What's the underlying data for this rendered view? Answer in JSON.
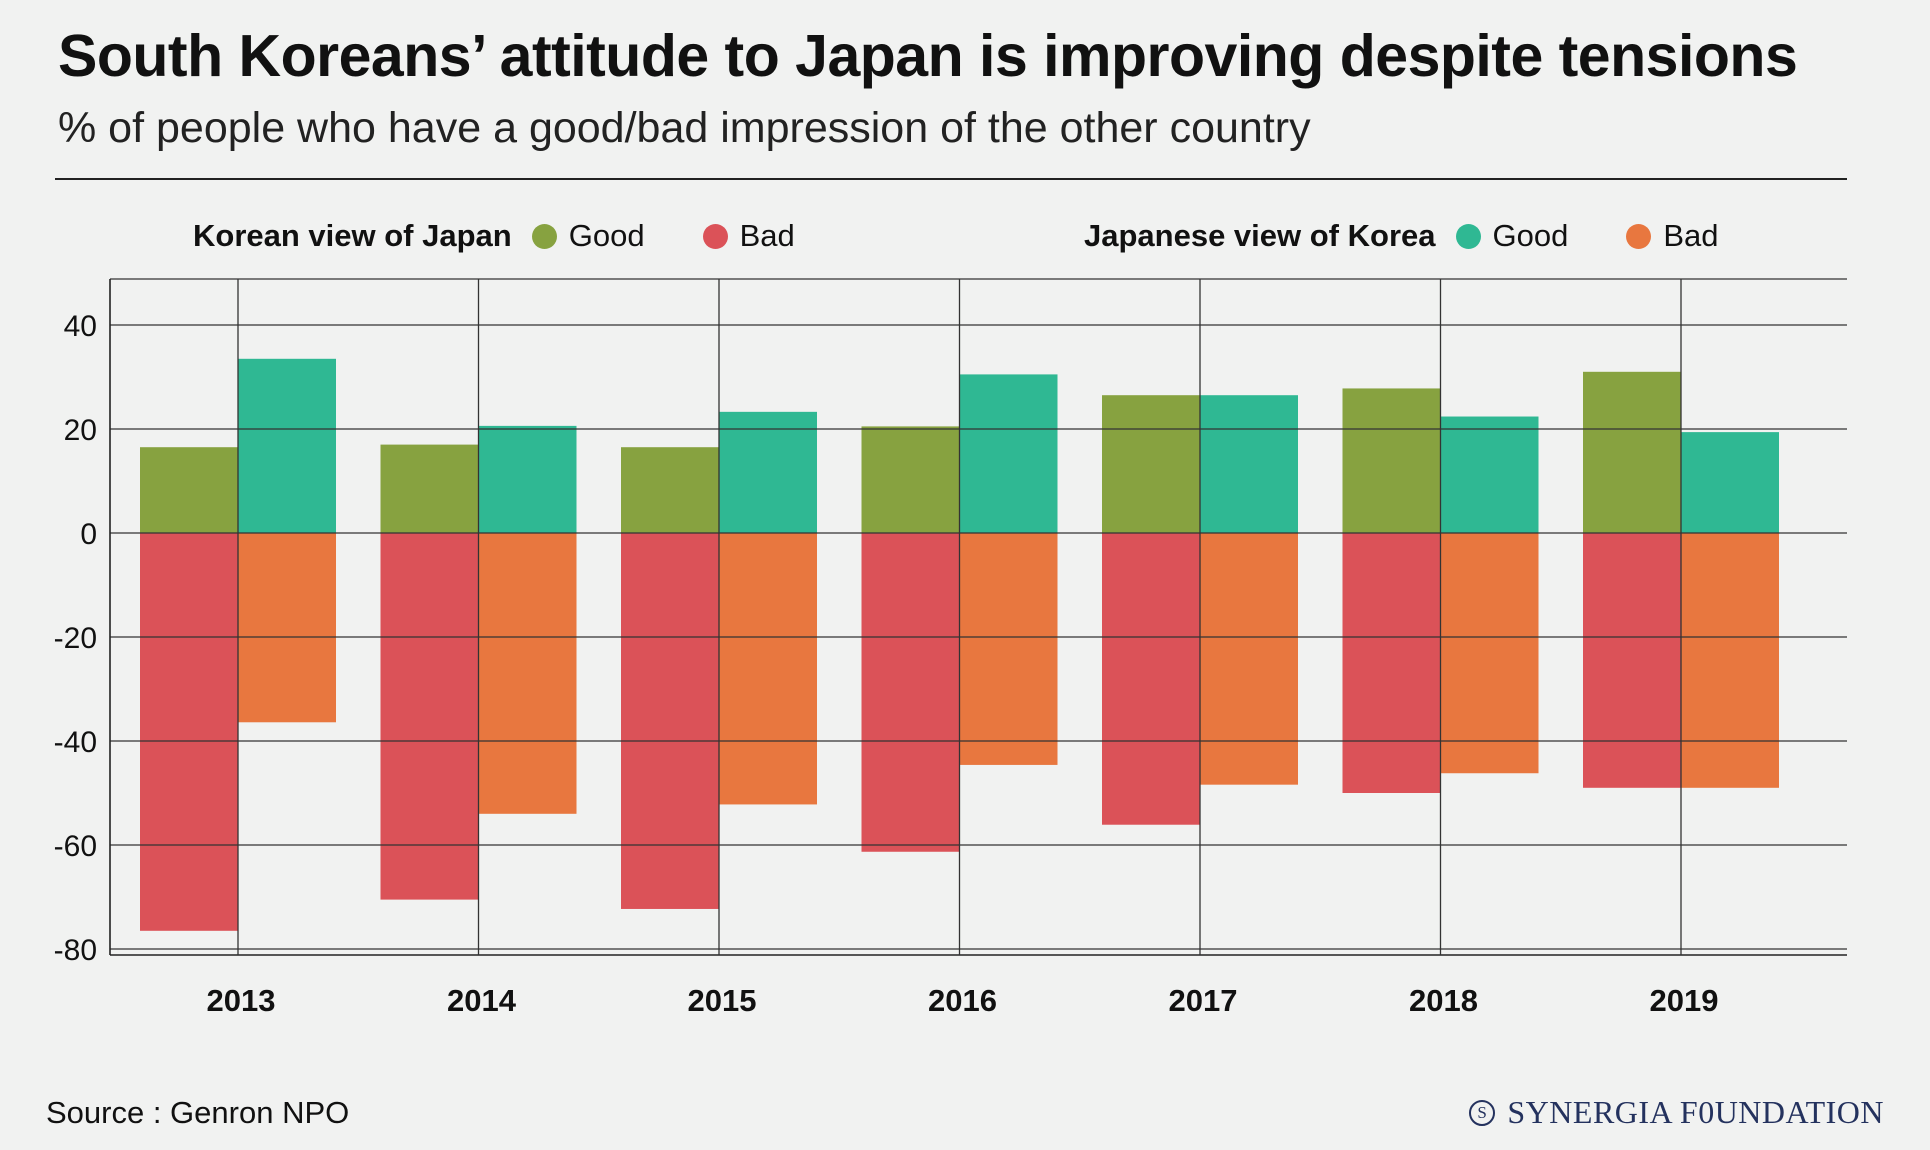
{
  "title": "South Koreans’ attitude to Japan is improving despite tensions",
  "subtitle": "% of people who have a good/bad impression of the other country",
  "legend": {
    "korean_label": "Korean view of Japan",
    "korean_good": "Good",
    "korean_bad": "Bad",
    "japanese_label": "Japanese view of Korea",
    "japanese_good": "Good",
    "japanese_bad": "Bad"
  },
  "source": "Source : Genron NPO",
  "brand": {
    "logo": "S",
    "name": "SYNERGIA F0UNDATION"
  },
  "colors": {
    "korean_good": "#87a240",
    "korean_bad": "#db5258",
    "japanese_good": "#2fb893",
    "japanese_bad": "#e8773f"
  },
  "chart_data": {
    "type": "bar",
    "title": "South Koreans’ attitude to Japan is improving despite tensions",
    "xlabel": "",
    "ylabel": "",
    "categories": [
      "2013",
      "2014",
      "2015",
      "2016",
      "2017",
      "2018",
      "2019"
    ],
    "ylim": [
      -80,
      50
    ],
    "yticks": [
      40,
      20,
      0,
      -20,
      -40,
      -60,
      -80
    ],
    "grid": true,
    "legend_position": "top",
    "series": [
      {
        "name": "Korean view of Japan - Good",
        "group": "korean",
        "polarity": "good",
        "values": [
          16.5,
          17,
          16.5,
          20.5,
          26.5,
          27.8,
          31
        ]
      },
      {
        "name": "Korean view of Japan - Bad",
        "group": "korean",
        "polarity": "bad",
        "values": [
          -76.5,
          -70.5,
          -72.3,
          -61.3,
          -56.1,
          -50,
          -49
        ]
      },
      {
        "name": "Japanese view of Korea - Good",
        "group": "japanese",
        "polarity": "good",
        "values": [
          33.5,
          20.6,
          23.3,
          30.5,
          26.5,
          22.4,
          19.4
        ]
      },
      {
        "name": "Japanese view of Korea - Bad",
        "group": "japanese",
        "polarity": "bad",
        "values": [
          -36.4,
          -54,
          -52.2,
          -44.6,
          -48.4,
          -46.2,
          -49
        ]
      }
    ]
  }
}
